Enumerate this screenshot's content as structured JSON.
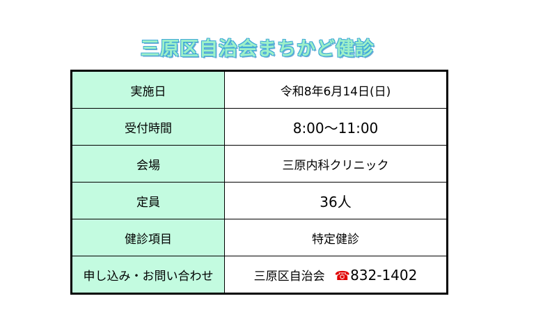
{
  "title": "三原区自治会まちかど健診",
  "rows": [
    {
      "label": "実施日",
      "value": "令和8年6月14日(日)"
    },
    {
      "label": "受付時間",
      "value": "8:00～11:00"
    },
    {
      "label": "会場",
      "value": "三原内科クリニック"
    },
    {
      "label": "定員",
      "value": "36人"
    },
    {
      "label": "健診項目",
      "value": "特定健診"
    },
    {
      "label": "申し込み・お問い合わせ",
      "value": "三原区自治会",
      "tel_icon": "☎",
      "tel": "832-1402"
    }
  ],
  "colors": {
    "label_bg": "#c3fbe0",
    "tel_icon": "#e00000"
  }
}
